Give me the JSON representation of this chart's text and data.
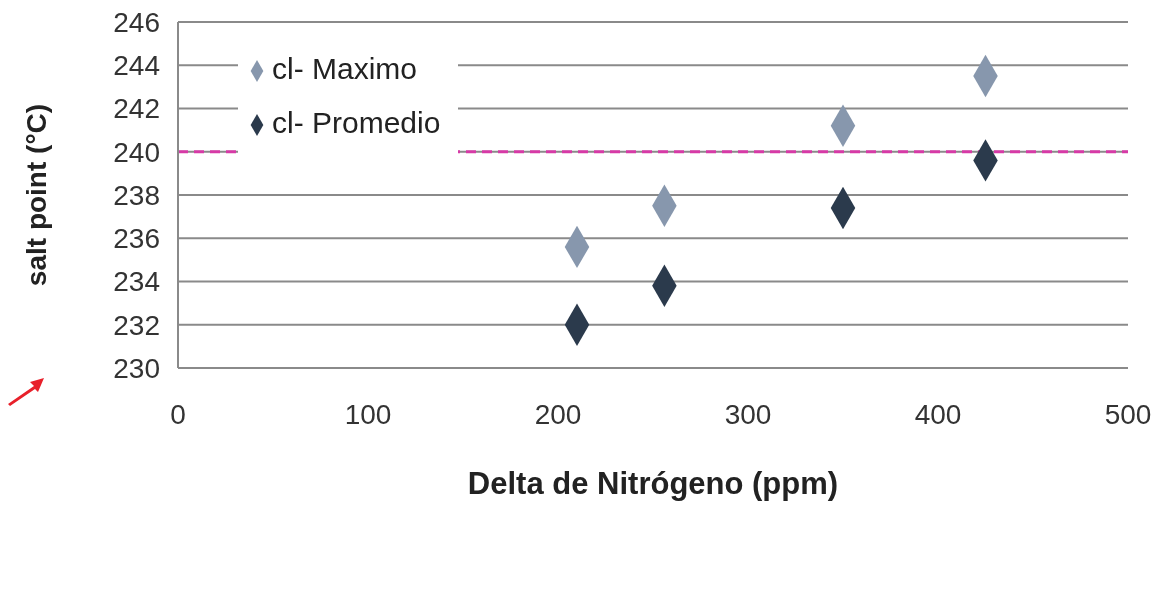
{
  "chart_data": {
    "type": "scatter",
    "ylabel": "salt point (°C)",
    "xlabel": "Delta de Nitrógeno (ppm)",
    "xlim": [
      0,
      500
    ],
    "xticks": [
      0,
      100,
      200,
      300,
      400,
      500
    ],
    "ylim": [
      230,
      246
    ],
    "yticks": [
      230,
      232,
      234,
      236,
      238,
      240,
      242,
      244,
      246
    ],
    "series": [
      {
        "name": "cl- Promedio",
        "color": "#2b3a4c",
        "x": [
          210,
          256,
          350,
          425
        ],
        "values": [
          232,
          233.8,
          237.4,
          239.6
        ]
      },
      {
        "name": "cl- Maximo",
        "color": "#8797ad",
        "x": [
          210,
          256,
          350,
          425
        ],
        "values": [
          235.6,
          237.5,
          241.2,
          243.5
        ]
      }
    ],
    "ref_lines": [
      {
        "axis": "y",
        "value": 240,
        "color": "#d63aa6",
        "line_style": "dashed"
      }
    ],
    "grid": "y",
    "legend": "top left",
    "marker": "diamond"
  }
}
